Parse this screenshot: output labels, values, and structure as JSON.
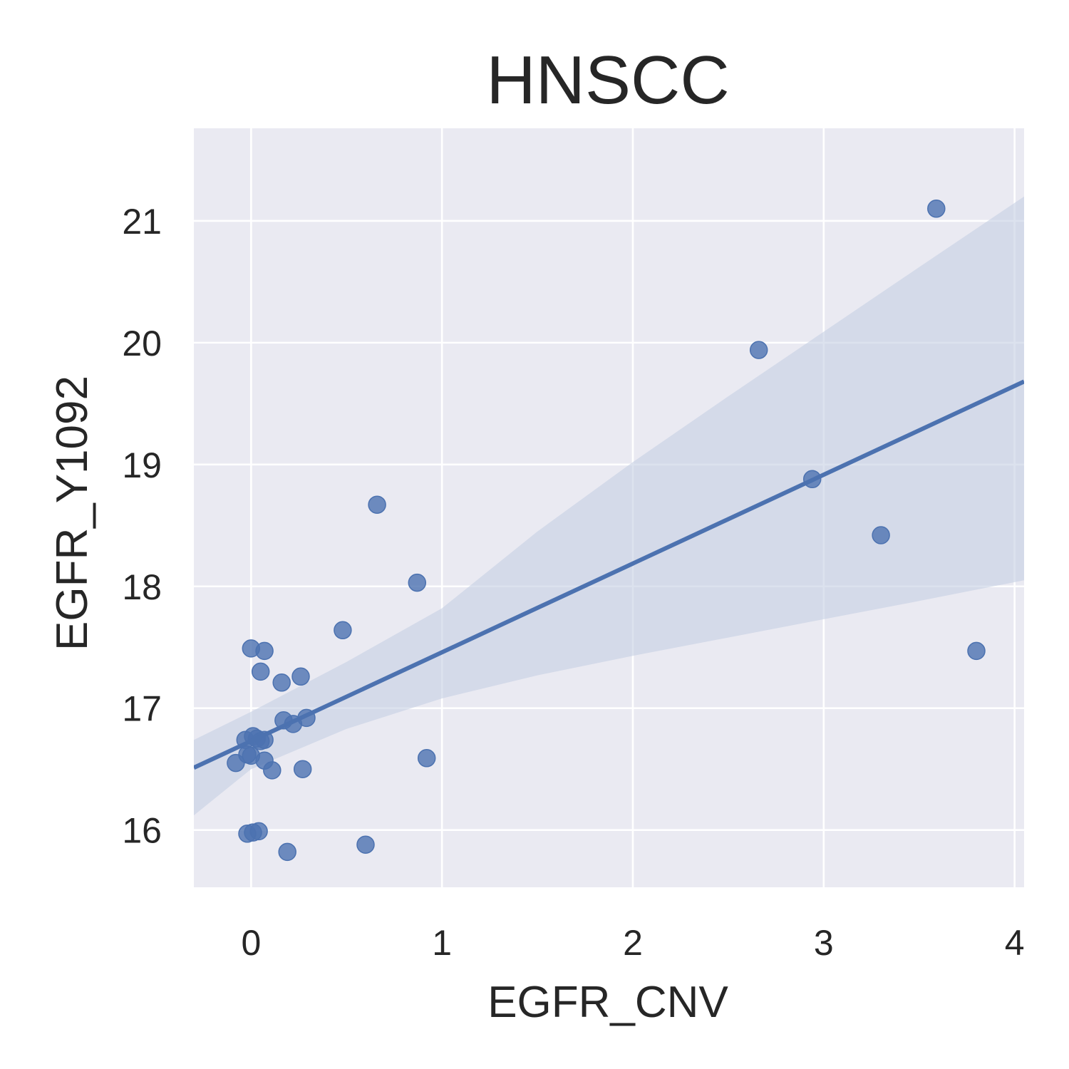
{
  "chart_data": {
    "type": "scatter",
    "title": "HNSCC",
    "xlabel": "EGFR_CNV",
    "ylabel": "EGFR_Y1092",
    "xlim": [
      -0.3,
      4.05
    ],
    "ylim": [
      15.53,
      21.76
    ],
    "x_ticks": [
      0,
      1,
      2,
      3,
      4
    ],
    "y_ticks": [
      16,
      17,
      18,
      19,
      20,
      21
    ],
    "grid": true,
    "colors": {
      "background": "#eaeaf2",
      "grid": "#ffffff",
      "point": "#4c72b0",
      "line": "#4c72b0",
      "band": "#c5cfe2"
    },
    "points": [
      {
        "x": 3.59,
        "y": 21.1
      },
      {
        "x": 2.66,
        "y": 19.94
      },
      {
        "x": 2.94,
        "y": 18.88
      },
      {
        "x": 3.3,
        "y": 18.42
      },
      {
        "x": 3.8,
        "y": 17.47
      },
      {
        "x": 0.66,
        "y": 18.67
      },
      {
        "x": 0.87,
        "y": 18.03
      },
      {
        "x": 0.48,
        "y": 17.64
      },
      {
        "x": 0.92,
        "y": 16.59
      },
      {
        "x": 0.6,
        "y": 15.88
      },
      {
        "x": 0.0,
        "y": 17.49
      },
      {
        "x": 0.07,
        "y": 17.47
      },
      {
        "x": 0.05,
        "y": 17.3
      },
      {
        "x": 0.16,
        "y": 17.21
      },
      {
        "x": 0.26,
        "y": 17.26
      },
      {
        "x": 0.17,
        "y": 16.9
      },
      {
        "x": 0.22,
        "y": 16.87
      },
      {
        "x": 0.29,
        "y": 16.92
      },
      {
        "x": -0.03,
        "y": 16.74
      },
      {
        "x": 0.01,
        "y": 16.77
      },
      {
        "x": 0.03,
        "y": 16.75
      },
      {
        "x": 0.05,
        "y": 16.73
      },
      {
        "x": 0.07,
        "y": 16.74
      },
      {
        "x": -0.02,
        "y": 16.62
      },
      {
        "x": 0.0,
        "y": 16.61
      },
      {
        "x": -0.08,
        "y": 16.55
      },
      {
        "x": 0.07,
        "y": 16.57
      },
      {
        "x": 0.11,
        "y": 16.49
      },
      {
        "x": 0.27,
        "y": 16.5
      },
      {
        "x": -0.02,
        "y": 15.97
      },
      {
        "x": 0.01,
        "y": 15.98
      },
      {
        "x": 0.04,
        "y": 15.99
      },
      {
        "x": 0.19,
        "y": 15.82
      }
    ],
    "regression": {
      "intercept": 16.73,
      "slope": 0.7287
    },
    "ci_band": {
      "x": [
        -0.3,
        0.0,
        0.5,
        1.0,
        1.5,
        2.0,
        2.5,
        3.0,
        3.5,
        4.05
      ],
      "lower": [
        16.12,
        16.5,
        16.83,
        17.08,
        17.27,
        17.43,
        17.58,
        17.73,
        17.88,
        18.05
      ],
      "upper": [
        16.74,
        16.97,
        17.38,
        17.82,
        18.45,
        19.02,
        19.56,
        20.09,
        20.62,
        21.2
      ]
    }
  }
}
